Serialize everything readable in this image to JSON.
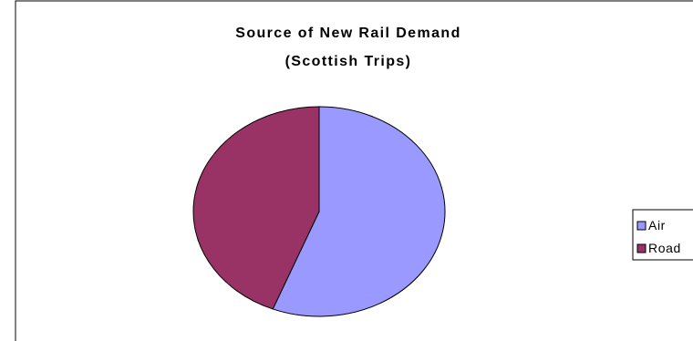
{
  "chart_data": {
    "type": "pie",
    "title": [
      "Source of New Rail Demand",
      "(Scottish Trips)"
    ],
    "categories": [
      "Air",
      "Road"
    ],
    "values": [
      56,
      44
    ],
    "colors": [
      "#9999ff",
      "#993366"
    ],
    "legend_position": "right"
  }
}
